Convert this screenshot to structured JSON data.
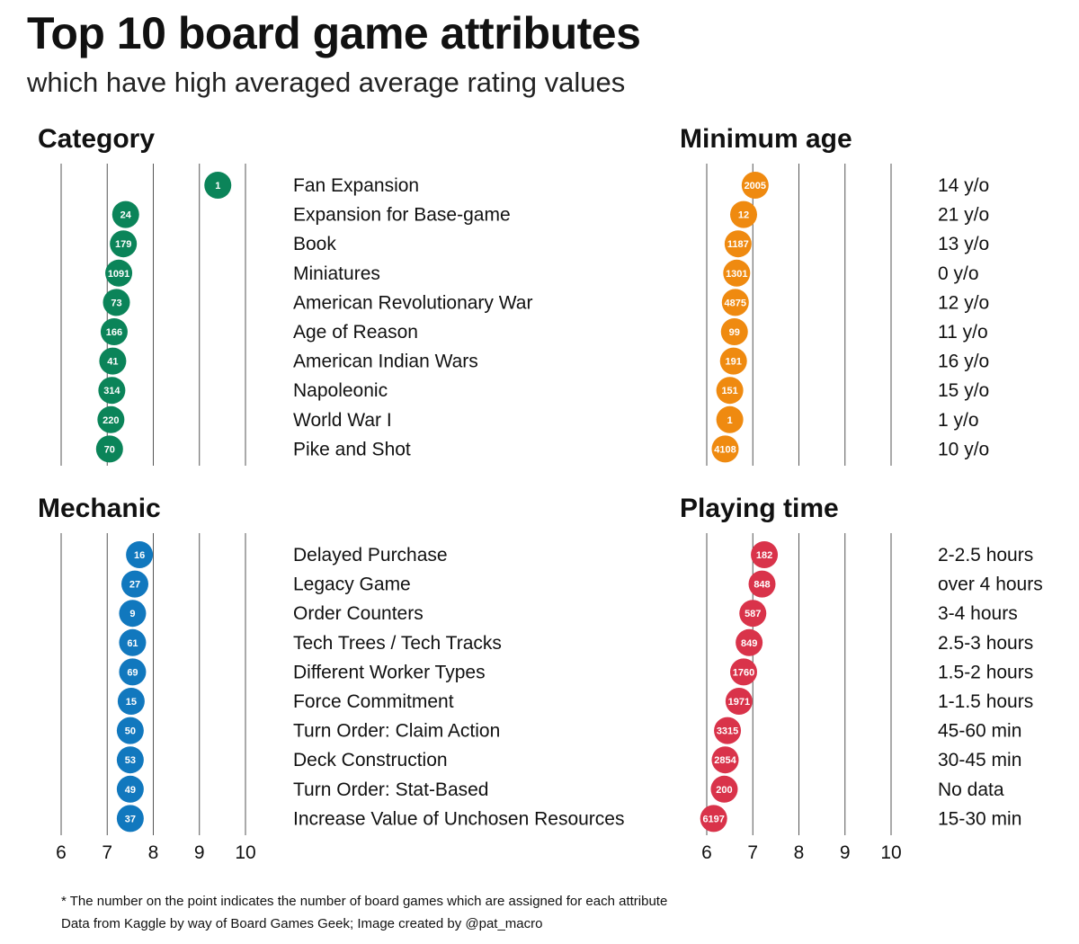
{
  "title": "Top 10 board game attributes",
  "subtitle": "which have high averaged average rating values",
  "footnote": {
    "line1": "* The number on the point indicates the number of board games which are assigned for each attribute",
    "line2": "Data from Kaggle by way of Board Games Geek; Image created by @pat_macro"
  },
  "chart_data": [
    {
      "type": "scatter",
      "title": "Category",
      "color": "#0b8459",
      "xlim": [
        6,
        10
      ],
      "x_ticks": [
        6,
        7,
        8,
        9,
        10
      ],
      "grid": true,
      "points": [
        {
          "label": "Fan Expansion",
          "x": 9.4,
          "count": "1"
        },
        {
          "label": "Expansion for Base-game",
          "x": 7.4,
          "count": "24"
        },
        {
          "label": "Book",
          "x": 7.35,
          "count": "179"
        },
        {
          "label": "Miniatures",
          "x": 7.25,
          "count": "1091"
        },
        {
          "label": "American Revolutionary War",
          "x": 7.2,
          "count": "73"
        },
        {
          "label": "Age of Reason",
          "x": 7.15,
          "count": "166"
        },
        {
          "label": "American Indian Wars",
          "x": 7.12,
          "count": "41"
        },
        {
          "label": "Napoleonic",
          "x": 7.1,
          "count": "314"
        },
        {
          "label": "World War I",
          "x": 7.08,
          "count": "220"
        },
        {
          "label": "Pike and Shot",
          "x": 7.05,
          "count": "70"
        }
      ]
    },
    {
      "type": "scatter",
      "title": "Minimum age",
      "color": "#ef8a10",
      "xlim": [
        6,
        10
      ],
      "x_ticks": [
        6,
        7,
        8,
        9,
        10
      ],
      "grid": true,
      "points": [
        {
          "label": "14 y/o",
          "x": 7.05,
          "count": "2005"
        },
        {
          "label": "21 y/o",
          "x": 6.8,
          "count": "12"
        },
        {
          "label": "13 y/o",
          "x": 6.68,
          "count": "1187"
        },
        {
          "label": "0 y/o",
          "x": 6.65,
          "count": "1301"
        },
        {
          "label": "12 y/o",
          "x": 6.62,
          "count": "4875"
        },
        {
          "label": "11 y/o",
          "x": 6.6,
          "count": "99"
        },
        {
          "label": "16 y/o",
          "x": 6.58,
          "count": "191"
        },
        {
          "label": "15 y/o",
          "x": 6.5,
          "count": "151"
        },
        {
          "label": "1 y/o",
          "x": 6.5,
          "count": "1"
        },
        {
          "label": "10 y/o",
          "x": 6.4,
          "count": "4108"
        }
      ]
    },
    {
      "type": "scatter",
      "title": "Mechanic",
      "color": "#1178be",
      "xlim": [
        6,
        10
      ],
      "x_ticks": [
        6,
        7,
        8,
        9,
        10
      ],
      "grid": true,
      "points": [
        {
          "label": "Delayed Purchase",
          "x": 7.7,
          "count": "16"
        },
        {
          "label": "Legacy Game",
          "x": 7.6,
          "count": "27"
        },
        {
          "label": "Order Counters",
          "x": 7.55,
          "count": "9"
        },
        {
          "label": "Tech Trees / Tech Tracks",
          "x": 7.55,
          "count": "61"
        },
        {
          "label": "Different Worker Types",
          "x": 7.55,
          "count": "69"
        },
        {
          "label": "Force Commitment",
          "x": 7.52,
          "count": "15"
        },
        {
          "label": "Turn Order: Claim Action",
          "x": 7.5,
          "count": "50"
        },
        {
          "label": "Deck Construction",
          "x": 7.5,
          "count": "53"
        },
        {
          "label": "Turn Order: Stat-Based",
          "x": 7.5,
          "count": "49"
        },
        {
          "label": "Increase Value of Unchosen Resources",
          "x": 7.5,
          "count": "37"
        }
      ]
    },
    {
      "type": "scatter",
      "title": "Playing time",
      "color": "#d9334a",
      "xlim": [
        6,
        10
      ],
      "x_ticks": [
        6,
        7,
        8,
        9,
        10
      ],
      "grid": true,
      "points": [
        {
          "label": "2-2.5 hours",
          "x": 7.25,
          "count": "182"
        },
        {
          "label": "over 4 hours",
          "x": 7.2,
          "count": "848"
        },
        {
          "label": "3-4 hours",
          "x": 7.0,
          "count": "587"
        },
        {
          "label": "2.5-3 hours",
          "x": 6.92,
          "count": "849"
        },
        {
          "label": "1.5-2 hours",
          "x": 6.8,
          "count": "1760"
        },
        {
          "label": "1-1.5 hours",
          "x": 6.7,
          "count": "1971"
        },
        {
          "label": "45-60 min",
          "x": 6.45,
          "count": "3315"
        },
        {
          "label": "30-45 min",
          "x": 6.4,
          "count": "2854"
        },
        {
          "label": "No data",
          "x": 6.38,
          "count": "200"
        },
        {
          "label": "15-30 min",
          "x": 6.15,
          "count": "6197"
        }
      ]
    }
  ]
}
